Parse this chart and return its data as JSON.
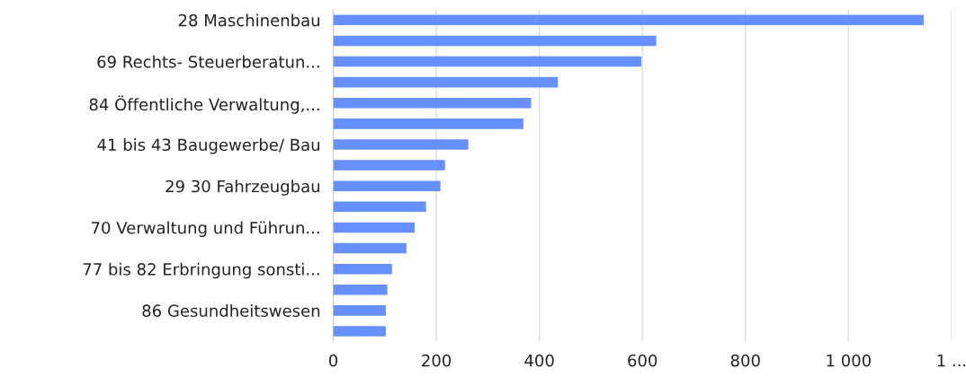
{
  "chart_data": {
    "type": "bar",
    "orientation": "horizontal",
    "categories": [
      "28 Maschinenbau",
      null,
      "69 Rechts- Steuerberatun...",
      null,
      "84 Öffentliche Verwaltung,...",
      null,
      "41 bis 43 Baugewerbe/ Bau",
      null,
      "29 30 Fahrzeugbau",
      null,
      "70 Verwaltung und Führun...",
      null,
      "77 bis 82 Erbringung sonsti...",
      null,
      "86 Gesundheitswesen",
      null
    ],
    "values": [
      1146,
      627,
      598,
      436,
      384,
      369,
      262,
      217,
      208,
      180,
      158,
      142,
      114,
      105,
      102,
      102
    ],
    "color": "#6690ff",
    "xlim": [
      0,
      1200
    ],
    "xticks": [
      0,
      200,
      400,
      600,
      800,
      {
        "value": 1000,
        "label": "1 000"
      },
      {
        "value": 1200,
        "label": "1 ..."
      }
    ],
    "grid": "x"
  }
}
